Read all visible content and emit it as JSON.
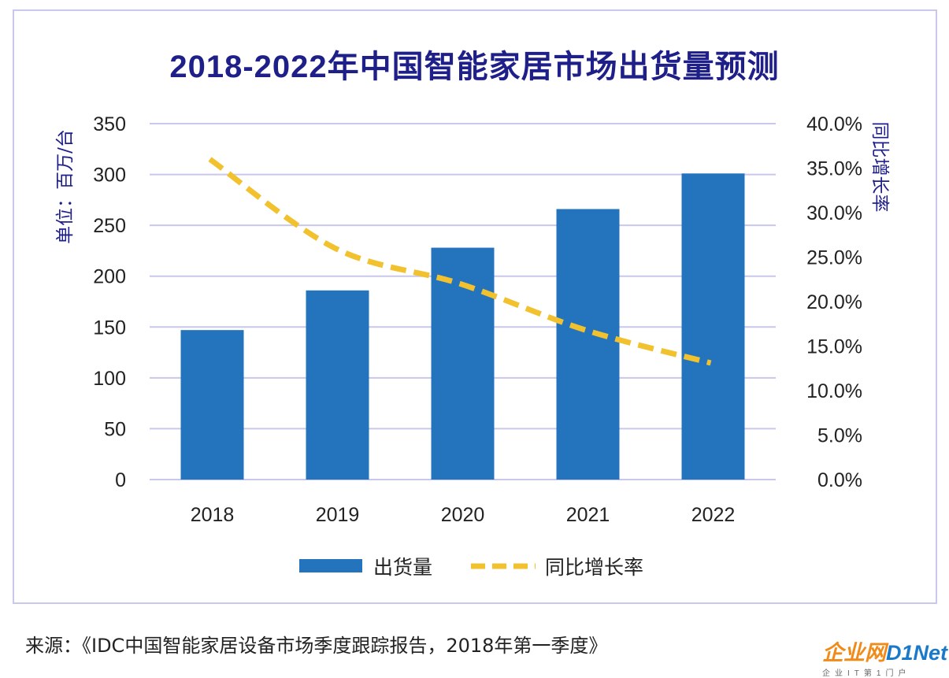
{
  "chart_data": {
    "type": "bar+line",
    "title": "2018-2022年中国智能家居市场出货量预测",
    "categories": [
      "2018",
      "2019",
      "2020",
      "2021",
      "2022"
    ],
    "series": [
      {
        "name": "出货量",
        "type": "bar",
        "axis": "left",
        "color": "#2474bd",
        "values": [
          147,
          186,
          228,
          266,
          301
        ]
      },
      {
        "name": "同比增长率",
        "type": "line",
        "axis": "right",
        "style": "dashed",
        "color": "#f2c12e",
        "values": [
          36.0,
          26.0,
          22.0,
          16.8,
          13.1
        ]
      }
    ],
    "y_left": {
      "label": "单位：百万/台",
      "range": [
        0,
        350
      ],
      "ticks": [
        "0",
        "50",
        "100",
        "150",
        "200",
        "250",
        "300",
        "350"
      ]
    },
    "y_right": {
      "label": "同比增长率",
      "range": [
        0,
        40
      ],
      "ticks": [
        "0.0%",
        "5.0%",
        "10.0%",
        "15.0%",
        "20.0%",
        "25.0%",
        "30.0%",
        "35.0%",
        "40.0%"
      ]
    },
    "grid": true,
    "legend": "bottom"
  },
  "source": "来源：《IDC中国智能家居设备市场季度跟踪报告，2018年第一季度》",
  "logo": {
    "main_a": "企业网",
    "main_b": "D1Net",
    "sub": "企业IT第1门户"
  }
}
